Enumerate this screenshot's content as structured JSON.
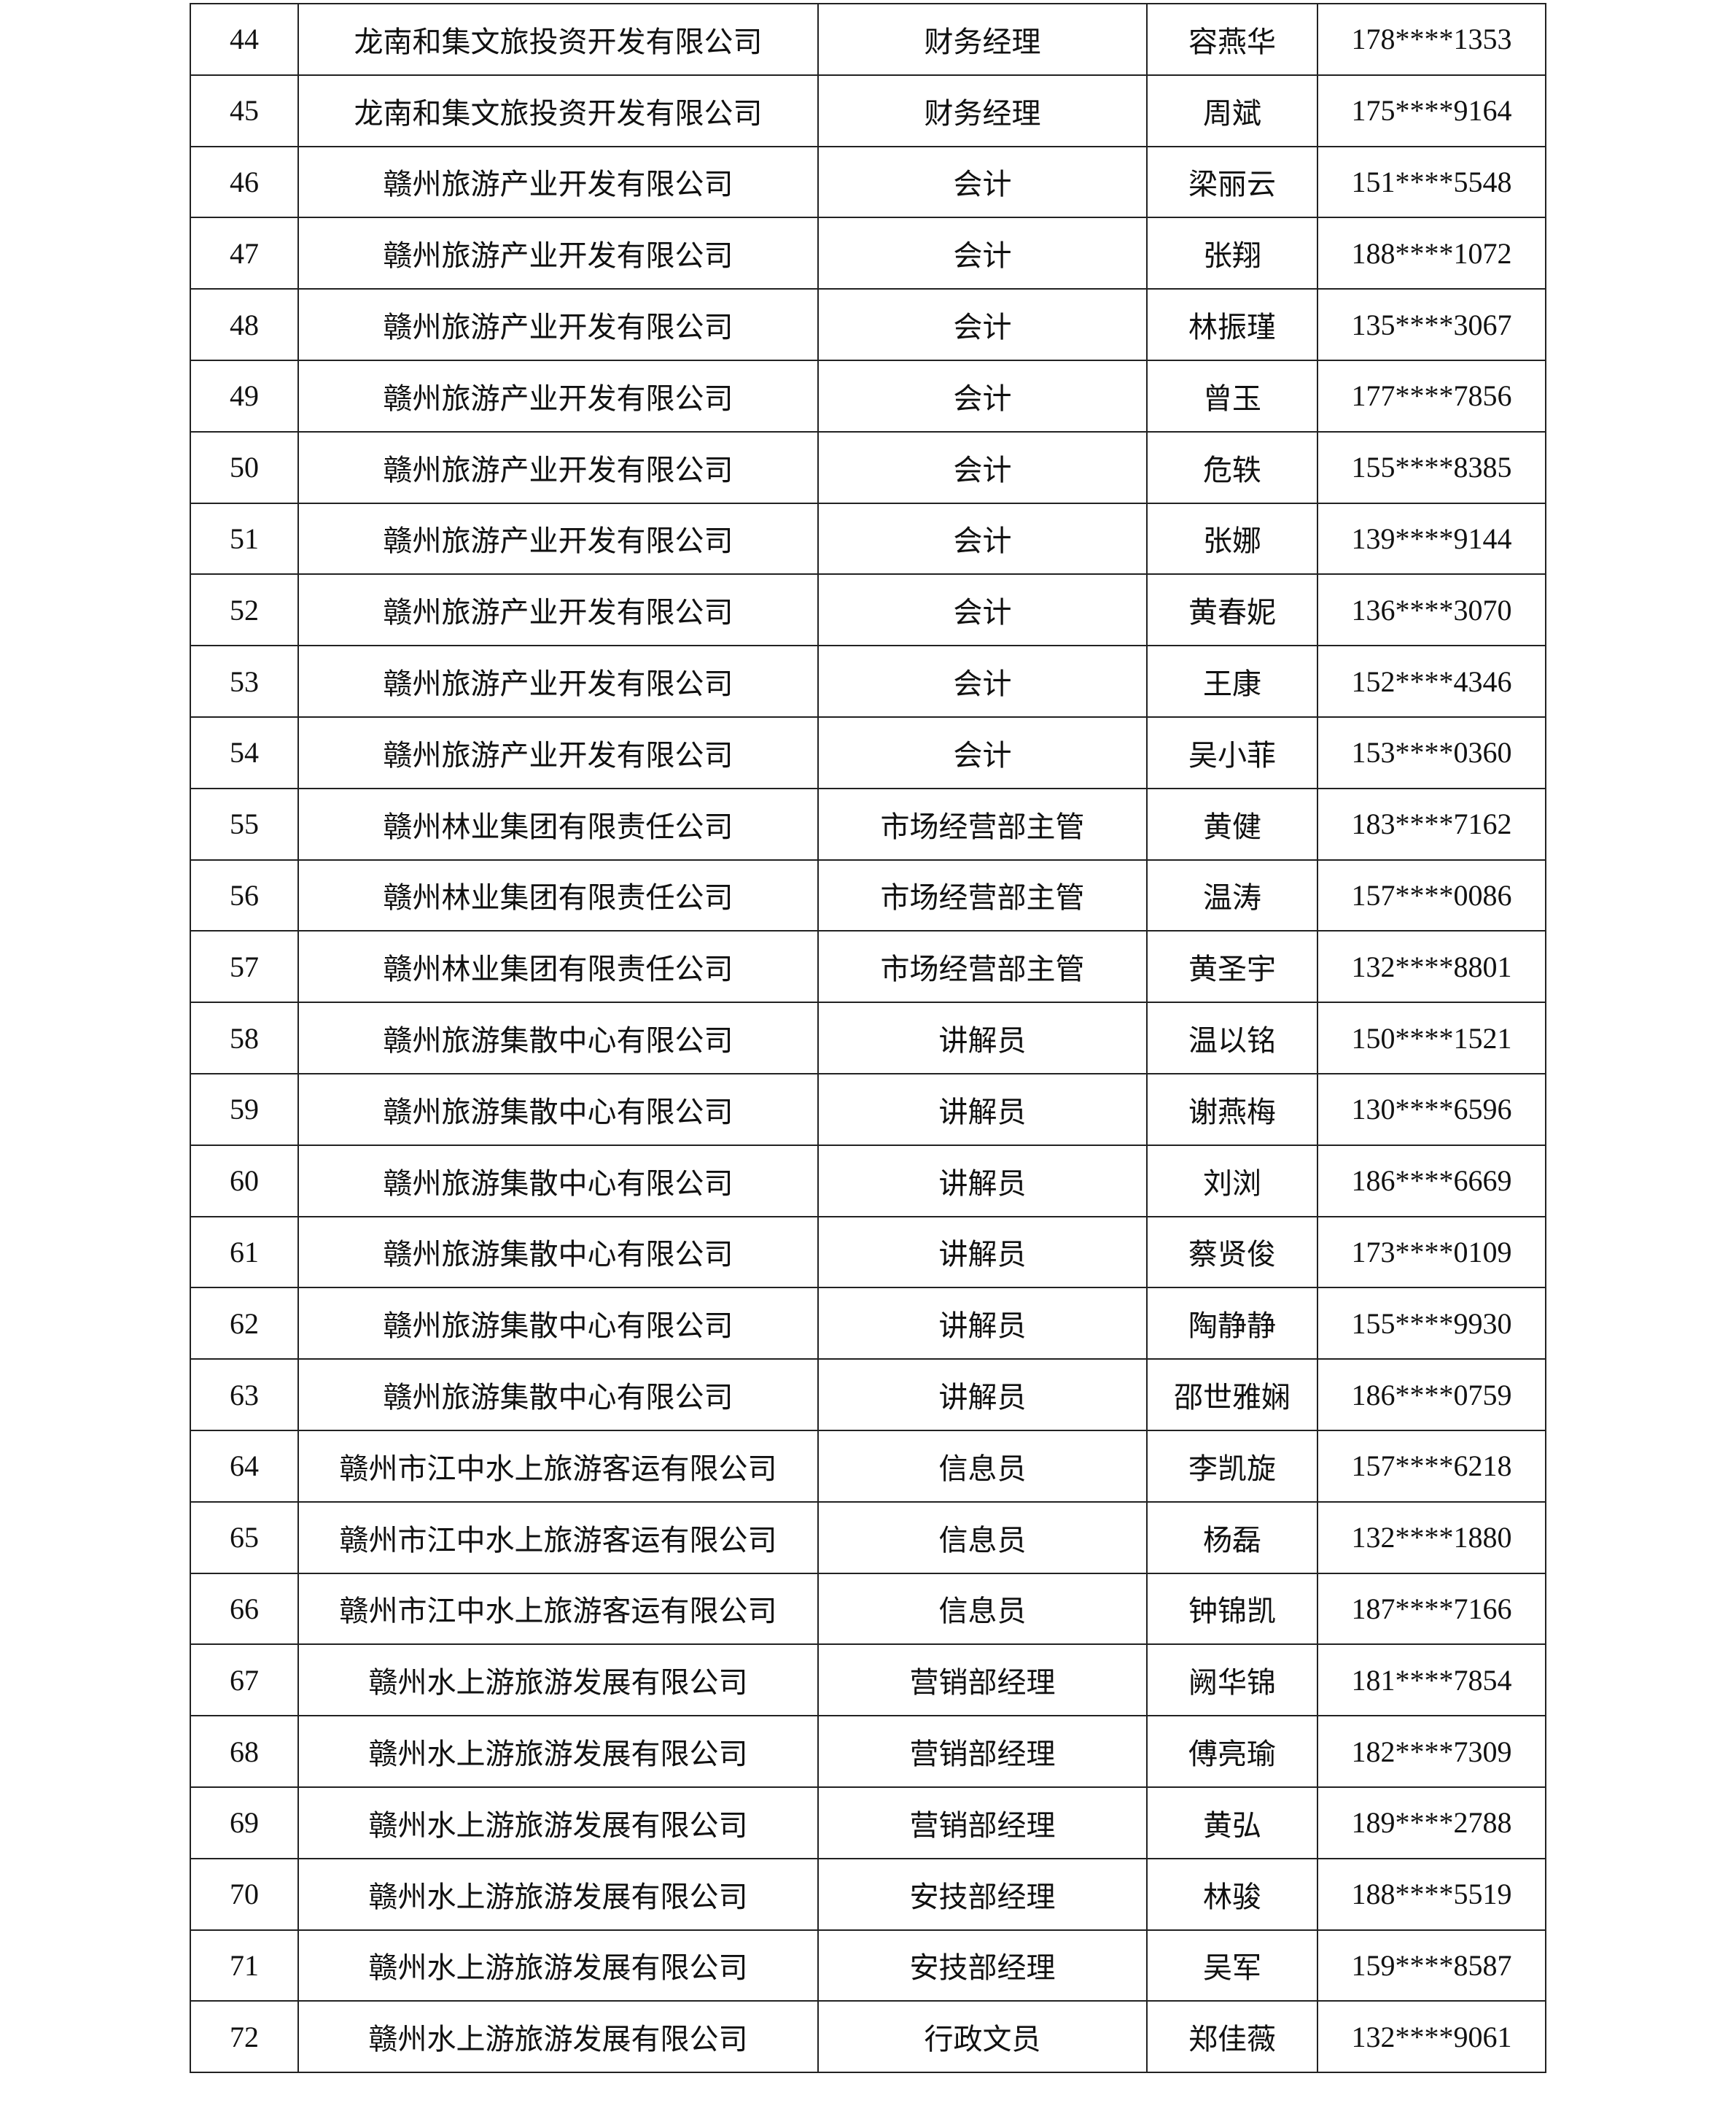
{
  "table": {
    "rows": [
      [
        "44",
        "龙南和集文旅投资开发有限公司",
        "财务经理",
        "容燕华",
        "178****1353"
      ],
      [
        "45",
        "龙南和集文旅投资开发有限公司",
        "财务经理",
        "周斌",
        "175****9164"
      ],
      [
        "46",
        "赣州旅游产业开发有限公司",
        "会计",
        "梁丽云",
        "151****5548"
      ],
      [
        "47",
        "赣州旅游产业开发有限公司",
        "会计",
        "张翔",
        "188****1072"
      ],
      [
        "48",
        "赣州旅游产业开发有限公司",
        "会计",
        "林振瑾",
        "135****3067"
      ],
      [
        "49",
        "赣州旅游产业开发有限公司",
        "会计",
        "曾玉",
        "177****7856"
      ],
      [
        "50",
        "赣州旅游产业开发有限公司",
        "会计",
        "危轶",
        "155****8385"
      ],
      [
        "51",
        "赣州旅游产业开发有限公司",
        "会计",
        "张娜",
        "139****9144"
      ],
      [
        "52",
        "赣州旅游产业开发有限公司",
        "会计",
        "黄春妮",
        "136****3070"
      ],
      [
        "53",
        "赣州旅游产业开发有限公司",
        "会计",
        "王康",
        "152****4346"
      ],
      [
        "54",
        "赣州旅游产业开发有限公司",
        "会计",
        "吴小菲",
        "153****0360"
      ],
      [
        "55",
        "赣州林业集团有限责任公司",
        "市场经营部主管",
        "黄健",
        "183****7162"
      ],
      [
        "56",
        "赣州林业集团有限责任公司",
        "市场经营部主管",
        "温涛",
        "157****0086"
      ],
      [
        "57",
        "赣州林业集团有限责任公司",
        "市场经营部主管",
        "黄圣宇",
        "132****8801"
      ],
      [
        "58",
        "赣州旅游集散中心有限公司",
        "讲解员",
        "温以铭",
        "150****1521"
      ],
      [
        "59",
        "赣州旅游集散中心有限公司",
        "讲解员",
        "谢燕梅",
        "130****6596"
      ],
      [
        "60",
        "赣州旅游集散中心有限公司",
        "讲解员",
        "刘浏",
        "186****6669"
      ],
      [
        "61",
        "赣州旅游集散中心有限公司",
        "讲解员",
        "蔡贤俊",
        "173****0109"
      ],
      [
        "62",
        "赣州旅游集散中心有限公司",
        "讲解员",
        "陶静静",
        "155****9930"
      ],
      [
        "63",
        "赣州旅游集散中心有限公司",
        "讲解员",
        "邵世雅娴",
        "186****0759"
      ],
      [
        "64",
        "赣州市江中水上旅游客运有限公司",
        "信息员",
        "李凯旋",
        "157****6218"
      ],
      [
        "65",
        "赣州市江中水上旅游客运有限公司",
        "信息员",
        "杨磊",
        "132****1880"
      ],
      [
        "66",
        "赣州市江中水上旅游客运有限公司",
        "信息员",
        "钟锦凯",
        "187****7166"
      ],
      [
        "67",
        "赣州水上游旅游发展有限公司",
        "营销部经理",
        "阙华锦",
        "181****7854"
      ],
      [
        "68",
        "赣州水上游旅游发展有限公司",
        "营销部经理",
        "傅亮瑜",
        "182****7309"
      ],
      [
        "69",
        "赣州水上游旅游发展有限公司",
        "营销部经理",
        "黄弘",
        "189****2788"
      ],
      [
        "70",
        "赣州水上游旅游发展有限公司",
        "安技部经理",
        "林骏",
        "188****5519"
      ],
      [
        "71",
        "赣州水上游旅游发展有限公司",
        "安技部经理",
        "吴军",
        "159****8587"
      ],
      [
        "72",
        "赣州水上游旅游发展有限公司",
        "行政文员",
        "郑佳薇",
        "132****9061"
      ]
    ]
  }
}
